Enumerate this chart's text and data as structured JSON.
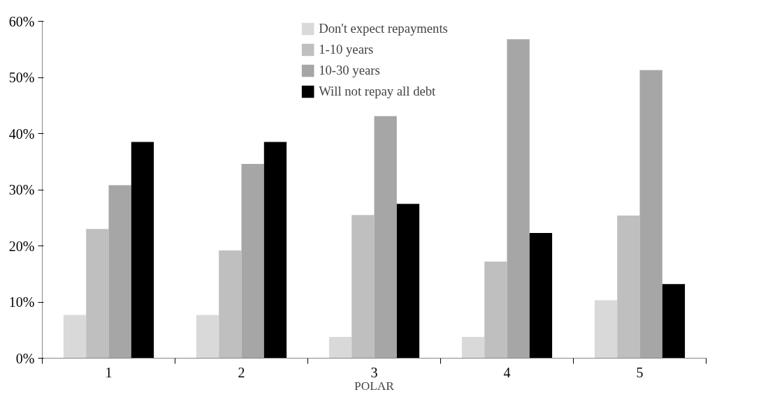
{
  "chart_data": {
    "type": "bar",
    "xlabel": "POLAR",
    "categories": [
      "1",
      "2",
      "3",
      "4",
      "5"
    ],
    "series": [
      {
        "name": "Don't expect repayments",
        "color": "#d9d9d9",
        "values": [
          7.7,
          7.7,
          3.8,
          3.8,
          10.3
        ]
      },
      {
        "name": "1-10 years",
        "color": "#bfbfbf",
        "values": [
          23.0,
          19.2,
          25.5,
          17.2,
          25.4
        ]
      },
      {
        "name": "10-30 years",
        "color": "#a6a6a6",
        "values": [
          30.8,
          34.6,
          43.1,
          56.8,
          51.3
        ]
      },
      {
        "name": "Will not repay all debt",
        "color": "#000000",
        "values": [
          38.5,
          38.5,
          27.5,
          22.3,
          13.2
        ]
      }
    ],
    "ylim": [
      0,
      60
    ],
    "yticks": [
      {
        "value": 0,
        "label": "0%"
      },
      {
        "value": 10,
        "label": "10%"
      },
      {
        "value": 20,
        "label": "20%"
      },
      {
        "value": 30,
        "label": "30%"
      },
      {
        "value": 40,
        "label": "40%"
      },
      {
        "value": 50,
        "label": "50%"
      },
      {
        "value": 60,
        "label": "60%"
      }
    ],
    "legend": "top",
    "grid": false
  }
}
